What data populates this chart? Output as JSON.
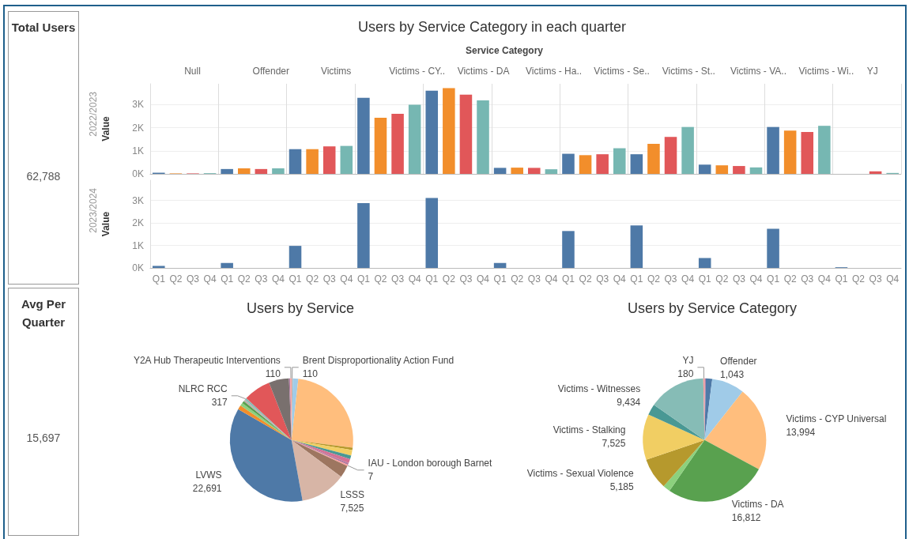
{
  "chart_data": [
    {
      "type": "other",
      "title": "Total Users",
      "annotations": [
        "62,788"
      ]
    },
    {
      "type": "bar",
      "title": "Users by Service Category in each quarter",
      "xlabel": "Service Category",
      "subtitle": "2022/2023",
      "ylabel": "Value",
      "annotations": [
        "Null",
        "Offender",
        "Victims",
        "Victims - CY..",
        "Victims - DA",
        "Victims - Ha..",
        "Victims - Se..",
        "Victims - St..",
        "Victims - VA..",
        "Victims - Wi..",
        "YJ"
      ],
      "categories": [
        null,
        null,
        null,
        null,
        null,
        null,
        null,
        null,
        null,
        null,
        null,
        null,
        null,
        null,
        null,
        null,
        null,
        null,
        null,
        null,
        null,
        null,
        null,
        null,
        null,
        null,
        null,
        null,
        null,
        null,
        null,
        null,
        null,
        null,
        null,
        null,
        null,
        null,
        null,
        null,
        null,
        null,
        null,
        null
      ],
      "values": [
        50,
        20,
        20,
        30,
        210,
        240,
        210,
        240,
        1070,
        1070,
        1190,
        1210,
        3290,
        2430,
        2600,
        2990,
        3600,
        3710,
        3430,
        3180,
        260,
        270,
        260,
        200,
        870,
        810,
        850,
        1110,
        850,
        1300,
        1600,
        2030,
        400,
        370,
        340,
        280,
        2030,
        1870,
        1810,
        2080,
        null,
        null,
        110,
        40
      ],
      "colors": [
        "#4e79a7",
        "#f28e2b",
        "#e15759",
        "#76b7b2",
        "#4e79a7",
        "#f28e2b",
        "#e15759",
        "#76b7b2",
        "#4e79a7",
        "#f28e2b",
        "#e15759",
        "#76b7b2",
        "#4e79a7",
        "#f28e2b",
        "#e15759",
        "#76b7b2",
        "#4e79a7",
        "#f28e2b",
        "#e15759",
        "#76b7b2",
        "#4e79a7",
        "#f28e2b",
        "#e15759",
        "#76b7b2",
        "#4e79a7",
        "#f28e2b",
        "#e15759",
        "#76b7b2",
        "#4e79a7",
        "#f28e2b",
        "#e15759",
        "#76b7b2",
        "#4e79a7",
        "#f28e2b",
        "#e15759",
        "#76b7b2",
        "#4e79a7",
        "#f28e2b",
        "#e15759",
        "#76b7b2",
        "#4e79a7",
        "#f28e2b",
        "#e15759",
        "#76b7b2"
      ],
      "ylim": [
        0,
        3900
      ],
      "yticks": [
        {
          "value": 0,
          "label": "0K"
        },
        {
          "value": 1000,
          "label": "1K"
        },
        {
          "value": 2000,
          "label": "2K"
        },
        {
          "value": 3000,
          "label": "3K"
        }
      ],
      "grid": "y",
      "tick_labels": "y"
    },
    {
      "type": "bar",
      "subtitle": "2023/2024",
      "ylabel": "Value",
      "categories": [
        "Q1",
        "Q2",
        "Q3",
        "Q4",
        "Q1",
        "Q2",
        "Q3",
        "Q4",
        "Q1",
        "Q2",
        "Q3",
        "Q4",
        "Q1",
        "Q2",
        "Q3",
        "Q4",
        "Q1",
        "Q2",
        "Q3",
        "Q4",
        "Q1",
        "Q2",
        "Q3",
        "Q4",
        "Q1",
        "Q2",
        "Q3",
        "Q4",
        "Q1",
        "Q2",
        "Q3",
        "Q4",
        "Q1",
        "Q2",
        "Q3",
        "Q4",
        "Q1",
        "Q2",
        "Q3",
        "Q4",
        "Q1",
        "Q2",
        "Q3",
        "Q4"
      ],
      "values": [
        90,
        null,
        null,
        null,
        220,
        null,
        null,
        null,
        980,
        null,
        null,
        null,
        2880,
        null,
        null,
        null,
        3110,
        null,
        null,
        null,
        220,
        null,
        null,
        null,
        1640,
        null,
        null,
        null,
        1890,
        null,
        null,
        null,
        440,
        null,
        null,
        null,
        1740,
        null,
        null,
        null,
        30,
        null,
        null,
        null
      ],
      "colors": [
        "#4e79a7",
        "#f28e2b",
        "#e15759",
        "#76b7b2",
        "#4e79a7",
        "#f28e2b",
        "#e15759",
        "#76b7b2",
        "#4e79a7",
        "#f28e2b",
        "#e15759",
        "#76b7b2",
        "#4e79a7",
        "#f28e2b",
        "#e15759",
        "#76b7b2",
        "#4e79a7",
        "#f28e2b",
        "#e15759",
        "#76b7b2",
        "#4e79a7",
        "#f28e2b",
        "#e15759",
        "#76b7b2",
        "#4e79a7",
        "#f28e2b",
        "#e15759",
        "#76b7b2",
        "#4e79a7",
        "#f28e2b",
        "#e15759",
        "#76b7b2",
        "#4e79a7",
        "#f28e2b",
        "#e15759",
        "#76b7b2",
        "#4e79a7",
        "#f28e2b",
        "#e15759",
        "#76b7b2",
        "#4e79a7",
        "#f28e2b",
        "#e15759",
        "#76b7b2"
      ],
      "ylim": [
        0,
        3900
      ],
      "yticks": [
        {
          "value": 0,
          "label": "0K"
        },
        {
          "value": 1000,
          "label": "1K"
        },
        {
          "value": 2000,
          "label": "2K"
        },
        {
          "value": 3000,
          "label": "3K"
        }
      ],
      "grid": "y"
    },
    {
      "type": "other",
      "title": "Avg Per Quarter",
      "annotations": [
        "15,697"
      ]
    },
    {
      "type": "pie",
      "title": "Users by Service",
      "categories": [
        "Brent Disproportionality Action Fund",
        null,
        null,
        null,
        null,
        null,
        null,
        null,
        "IAU - London borough Barnet",
        null,
        "LSSS",
        "LVWS",
        null,
        null,
        null,
        null,
        "NLRC RCC",
        null,
        null,
        null,
        "Y2A Hub Therapeutic Interventions"
      ],
      "values": [
        110,
        900,
        15800,
        400,
        900,
        600,
        700,
        300,
        7,
        2000,
        7525,
        22691,
        700,
        500,
        400,
        300,
        317,
        4500,
        3300,
        150,
        110
      ],
      "value_labels": [
        "110",
        null,
        null,
        null,
        null,
        null,
        null,
        null,
        "7",
        null,
        "7,525",
        "22,691",
        null,
        null,
        null,
        null,
        "317",
        null,
        null,
        null,
        "110"
      ],
      "colors": [
        "#bab0ac",
        "#a0cbe8",
        "#ffbe7d",
        "#b6992d",
        "#f1ce63",
        "#499894",
        "#d37295",
        "#b07aa1",
        "#ff9d9a",
        "#9d7660",
        "#d7b5a6",
        "#4e79a7",
        "#f28e2b",
        "#8cd17d",
        "#59a14f",
        "#bab0ac",
        "#86bcb6",
        "#e15759",
        "#79706e",
        "#b07aa1",
        "#ff9d9a"
      ]
    },
    {
      "type": "pie",
      "title": "Users by Service Category",
      "categories": [
        null,
        "Offender",
        null,
        "Victims - CYP Universal",
        "Victims - DA",
        null,
        "Victims - Sexual Violence",
        "Victims - Stalking",
        null,
        "Victims - Witnesses",
        "YJ"
      ],
      "values": [
        200,
        1043,
        5400,
        13994,
        16812,
        1200,
        5185,
        7525,
        1800,
        9434,
        180
      ],
      "value_labels": [
        null,
        "1,043",
        null,
        "13,994",
        "16,812",
        null,
        "5,185",
        "7,525",
        null,
        "9,434",
        "180"
      ],
      "colors": [
        "#b07aa1",
        "#4e79a7",
        "#a0cbe8",
        "#ffbe7d",
        "#59a14f",
        "#8cd17d",
        "#b6992d",
        "#f1ce63",
        "#499894",
        "#86bcb6",
        "#ff9d9a"
      ]
    }
  ]
}
